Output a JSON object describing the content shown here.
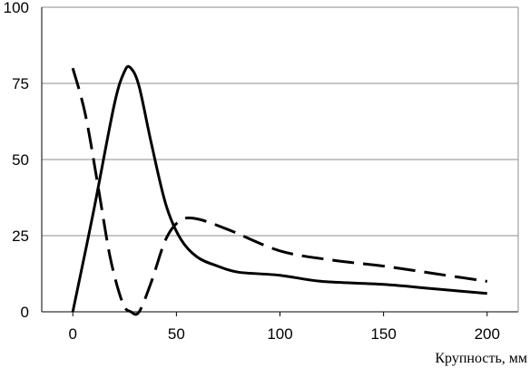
{
  "chart_data": {
    "type": "line",
    "title": "",
    "xlabel": "Крупность, мм",
    "ylabel": "",
    "xlim": [
      -15,
      215
    ],
    "ylim": [
      0,
      100
    ],
    "x_ticks": [
      0,
      50,
      100,
      150,
      200
    ],
    "y_ticks": [
      0,
      25,
      50,
      75,
      100
    ],
    "grid": "horizontal",
    "legend": "none",
    "series": [
      {
        "style": "solid",
        "color": "#000000",
        "points": [
          [
            0,
            0
          ],
          [
            10,
            33
          ],
          [
            20,
            68
          ],
          [
            25,
            79
          ],
          [
            28,
            80
          ],
          [
            32,
            74
          ],
          [
            38,
            55
          ],
          [
            45,
            35
          ],
          [
            52,
            24
          ],
          [
            60,
            18
          ],
          [
            70,
            15
          ],
          [
            80,
            13
          ],
          [
            100,
            12
          ],
          [
            120,
            10
          ],
          [
            150,
            9
          ],
          [
            175,
            7.5
          ],
          [
            200,
            6
          ]
        ]
      },
      {
        "style": "dashed",
        "color": "#000000",
        "points": [
          [
            0,
            80
          ],
          [
            6,
            65
          ],
          [
            12,
            42
          ],
          [
            18,
            18
          ],
          [
            24,
            3
          ],
          [
            28,
            0
          ],
          [
            32,
            0
          ],
          [
            38,
            10
          ],
          [
            45,
            24
          ],
          [
            52,
            30
          ],
          [
            60,
            30.5
          ],
          [
            75,
            27
          ],
          [
            100,
            20
          ],
          [
            125,
            17
          ],
          [
            150,
            15
          ],
          [
            175,
            12.5
          ],
          [
            200,
            10
          ]
        ]
      }
    ]
  }
}
